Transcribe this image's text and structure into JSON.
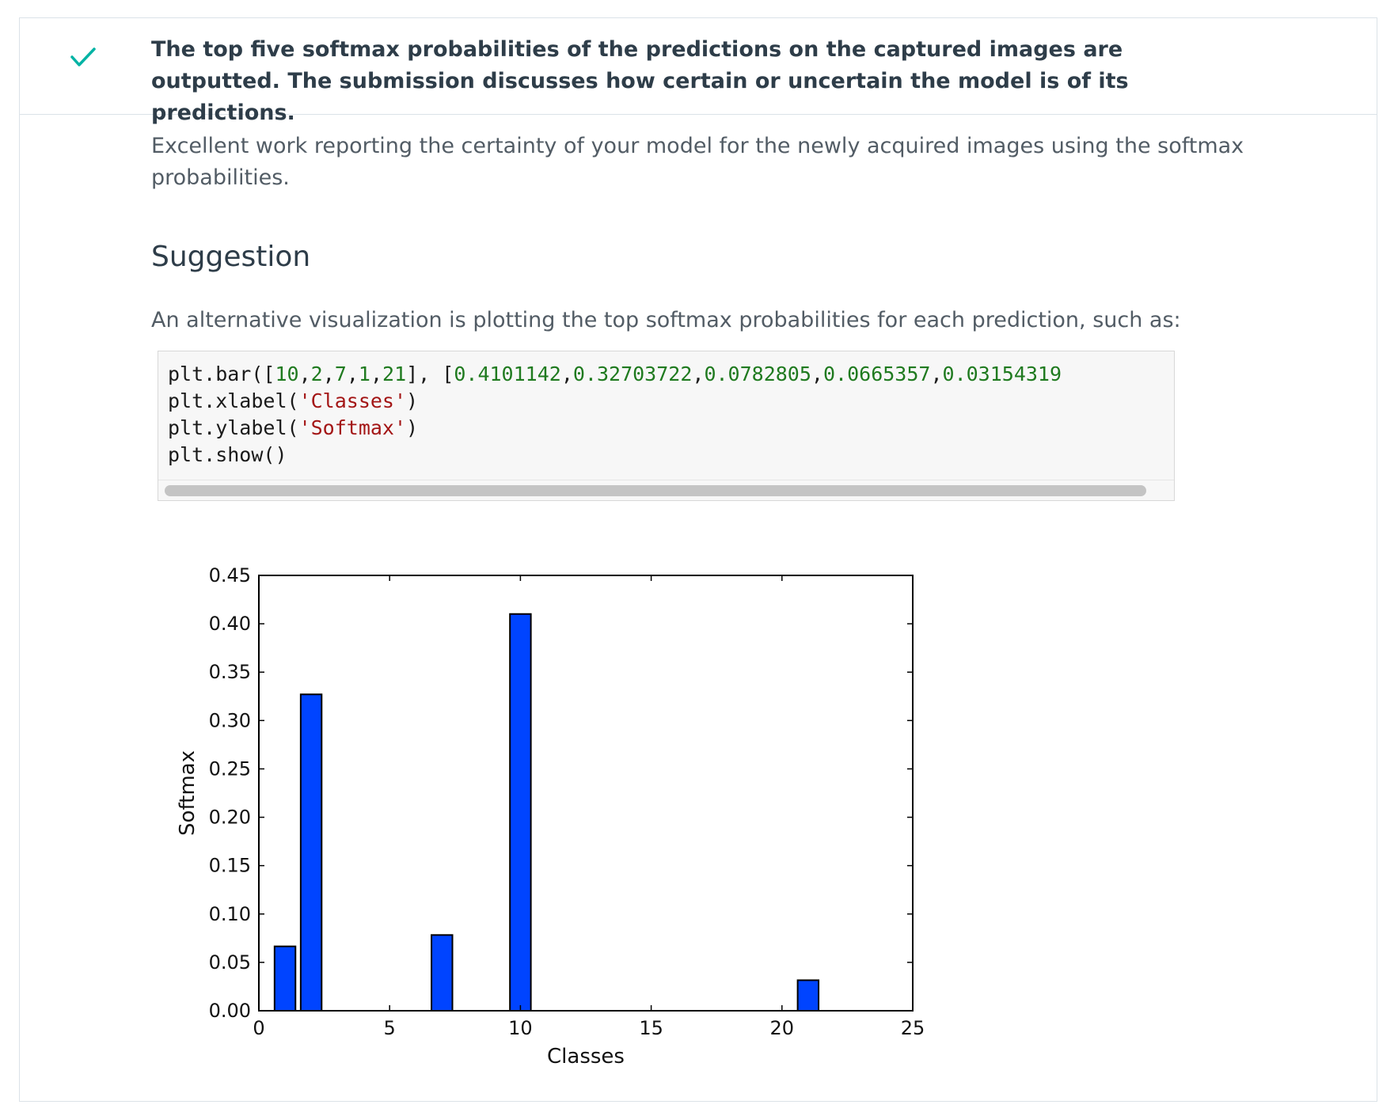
{
  "review": {
    "criteria_text": "The top five softmax probabilities of the predictions on the captured images are outputted. The submission discusses how certain or uncertain the model is of its predictions.",
    "status_icon": "check-icon",
    "status_color": "#02b3a4",
    "feedback_text": "Excellent work reporting the certainty of your model for the newly acquired images using the softmax probabilities.",
    "section_heading": "Suggestion",
    "suggestion_text": "An alternative visualization is plotting the top softmax probabilities for each prediction, such as:"
  },
  "code": {
    "lines": [
      [
        {
          "t": "plt.bar([",
          "c": "plain"
        },
        {
          "t": "10",
          "c": "num"
        },
        {
          "t": ",",
          "c": "plain"
        },
        {
          "t": "2",
          "c": "num"
        },
        {
          "t": ",",
          "c": "plain"
        },
        {
          "t": "7",
          "c": "num"
        },
        {
          "t": ",",
          "c": "plain"
        },
        {
          "t": "1",
          "c": "num"
        },
        {
          "t": ",",
          "c": "plain"
        },
        {
          "t": "21",
          "c": "num"
        },
        {
          "t": "], [",
          "c": "plain"
        },
        {
          "t": "0.4101142",
          "c": "num"
        },
        {
          "t": ",",
          "c": "plain"
        },
        {
          "t": "0.32703722",
          "c": "num"
        },
        {
          "t": ",",
          "c": "plain"
        },
        {
          "t": "0.0782805",
          "c": "num"
        },
        {
          "t": ",",
          "c": "plain"
        },
        {
          "t": "0.0665357",
          "c": "num"
        },
        {
          "t": ",",
          "c": "plain"
        },
        {
          "t": "0.03154319",
          "c": "num"
        }
      ],
      [
        {
          "t": "plt.xlabel(",
          "c": "plain"
        },
        {
          "t": "'Classes'",
          "c": "str"
        },
        {
          "t": ")",
          "c": "plain"
        }
      ],
      [
        {
          "t": "plt.ylabel(",
          "c": "plain"
        },
        {
          "t": "'Softmax'",
          "c": "str"
        },
        {
          "t": ")",
          "c": "plain"
        }
      ],
      [
        {
          "t": "plt.show()",
          "c": "plain"
        }
      ]
    ]
  },
  "chart_data": {
    "type": "bar",
    "x": [
      10,
      2,
      7,
      1,
      21
    ],
    "values": [
      0.4101142,
      0.32703722,
      0.0782805,
      0.0665357,
      0.03154319
    ],
    "bar_width": 0.8,
    "xlabel": "Classes",
    "ylabel": "Softmax",
    "xlim": [
      0,
      25
    ],
    "ylim": [
      0,
      0.45
    ],
    "xticks": [
      "0",
      "5",
      "10",
      "15",
      "20",
      "25"
    ],
    "xtick_values": [
      0,
      5,
      10,
      15,
      20,
      25
    ],
    "yticks": [
      "0.00",
      "0.05",
      "0.10",
      "0.15",
      "0.20",
      "0.25",
      "0.30",
      "0.35",
      "0.40",
      "0.45"
    ],
    "ytick_values": [
      0,
      0.05,
      0.1,
      0.15,
      0.2,
      0.25,
      0.3,
      0.35,
      0.4,
      0.45
    ],
    "bar_color": "#0044ff",
    "grid": false
  }
}
